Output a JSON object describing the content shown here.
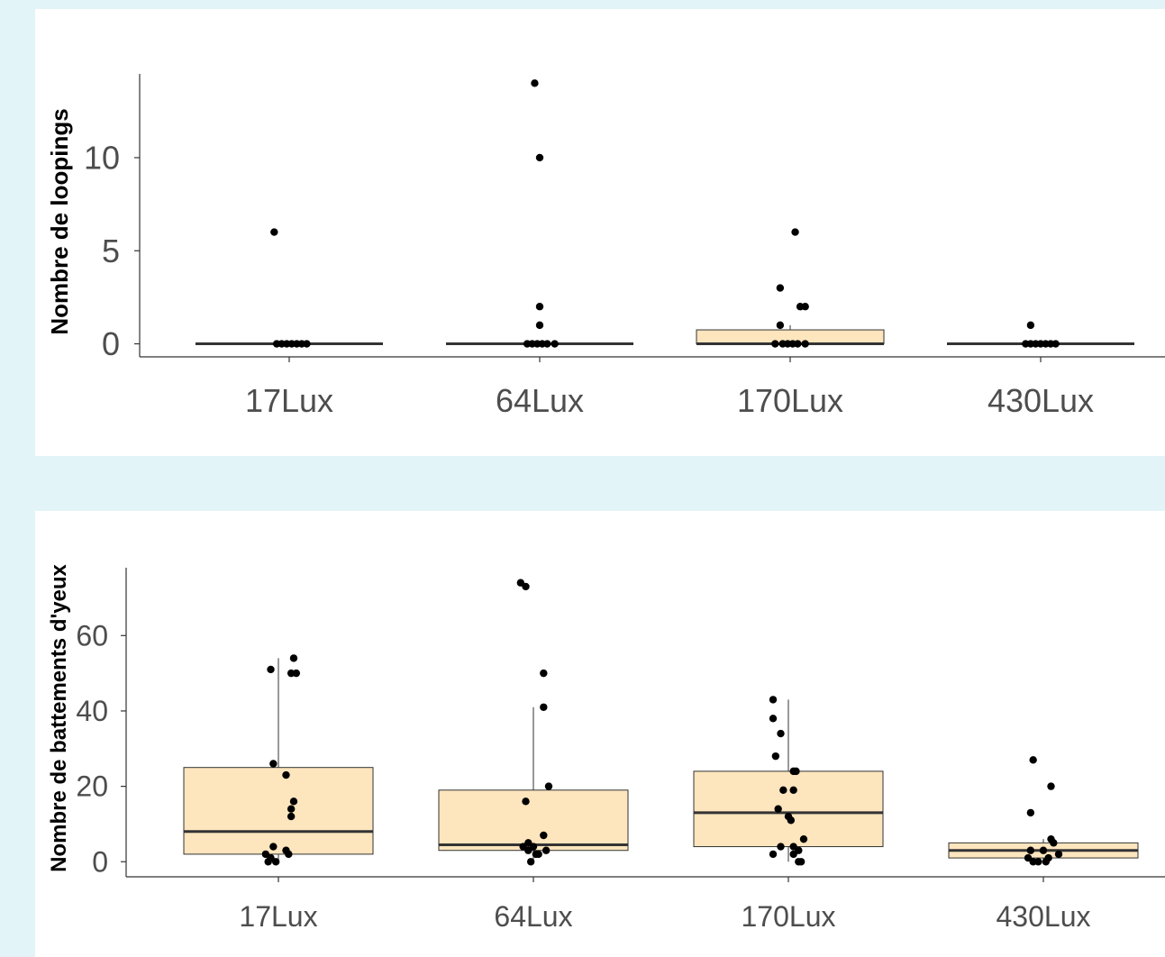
{
  "colors": {
    "box_fill": "#fde5bd",
    "box_stroke": "#333333",
    "point": "#000000",
    "axis": "#333333"
  },
  "chart_data": [
    {
      "type": "box",
      "ylabel": "Nombre de loopings",
      "categories": [
        "17Lux",
        "64Lux",
        "170Lux",
        "430Lux"
      ],
      "y_ticks": [
        0,
        5,
        10
      ],
      "ylim": [
        -0.7,
        14.5
      ],
      "boxes": [
        {
          "q1": 0,
          "median": 0,
          "q3": 0,
          "whisker_low": 0,
          "whisker_high": 0
        },
        {
          "q1": 0,
          "median": 0,
          "q3": 0,
          "whisker_low": 0,
          "whisker_high": 0
        },
        {
          "q1": 0,
          "median": 0,
          "q3": 0.75,
          "whisker_low": 0,
          "whisker_high": 1
        },
        {
          "q1": 0,
          "median": 0,
          "q3": 0,
          "whisker_low": 0,
          "whisker_high": 0
        }
      ],
      "points": [
        [
          [
            -0.06,
            6
          ],
          [
            -0.05,
            0
          ],
          [
            -0.03,
            0
          ],
          [
            -0.01,
            0
          ],
          [
            0.01,
            0
          ],
          [
            0.03,
            0
          ],
          [
            0.05,
            0
          ],
          [
            0.07,
            0
          ]
        ],
        [
          [
            -0.02,
            14
          ],
          [
            0,
            10
          ],
          [
            0,
            2
          ],
          [
            0,
            1
          ],
          [
            -0.05,
            0
          ],
          [
            -0.03,
            0
          ],
          [
            -0.01,
            0
          ],
          [
            0.01,
            0
          ],
          [
            0.03,
            0
          ],
          [
            0.06,
            0
          ]
        ],
        [
          [
            0.02,
            6
          ],
          [
            -0.04,
            3
          ],
          [
            0.04,
            2
          ],
          [
            0.06,
            2
          ],
          [
            -0.04,
            1
          ],
          [
            -0.06,
            0
          ],
          [
            -0.03,
            0
          ],
          [
            -0.01,
            0
          ],
          [
            0.01,
            0
          ],
          [
            0.03,
            0
          ],
          [
            0.06,
            0
          ]
        ],
        [
          [
            -0.04,
            1
          ],
          [
            -0.06,
            0
          ],
          [
            -0.04,
            0
          ],
          [
            -0.02,
            0
          ],
          [
            0,
            0
          ],
          [
            0.02,
            0
          ],
          [
            0.04,
            0
          ],
          [
            0.06,
            0
          ]
        ]
      ]
    },
    {
      "type": "box",
      "ylabel": "Nombre de battements d'yeux",
      "categories": [
        "17Lux",
        "64Lux",
        "170Lux",
        "430Lux"
      ],
      "y_ticks": [
        0,
        20,
        40,
        60
      ],
      "ylim": [
        -4,
        78
      ],
      "boxes": [
        {
          "q1": 2,
          "median": 8,
          "q3": 25,
          "whisker_low": 0,
          "whisker_high": 54
        },
        {
          "q1": 3,
          "median": 4.5,
          "q3": 19,
          "whisker_low": 0,
          "whisker_high": 41
        },
        {
          "q1": 4,
          "median": 13,
          "q3": 24,
          "whisker_low": 0,
          "whisker_high": 43
        },
        {
          "q1": 1,
          "median": 3,
          "q3": 5,
          "whisker_low": 0,
          "whisker_high": 6
        }
      ],
      "points": [
        [
          [
            -0.03,
            51
          ],
          [
            0.05,
            50
          ],
          [
            0.07,
            50
          ],
          [
            0.06,
            54
          ],
          [
            -0.02,
            26
          ],
          [
            0.03,
            23
          ],
          [
            0.06,
            16
          ],
          [
            0.05,
            14
          ],
          [
            0.05,
            12
          ],
          [
            -0.02,
            4
          ],
          [
            0.03,
            3
          ],
          [
            0.04,
            2
          ],
          [
            -0.05,
            2
          ],
          [
            -0.03,
            1
          ],
          [
            -0.04,
            0
          ],
          [
            -0.01,
            0
          ]
        ],
        [
          [
            -0.05,
            74
          ],
          [
            -0.03,
            73
          ],
          [
            0.04,
            50
          ],
          [
            0.04,
            41
          ],
          [
            0.06,
            20
          ],
          [
            -0.03,
            16
          ],
          [
            0.04,
            7
          ],
          [
            -0.02,
            5
          ],
          [
            0,
            4
          ],
          [
            -0.04,
            4
          ],
          [
            0.05,
            3
          ],
          [
            0.02,
            2
          ],
          [
            -0.02,
            3
          ],
          [
            0.01,
            2
          ],
          [
            -0.01,
            0
          ]
        ],
        [
          [
            -0.06,
            43
          ],
          [
            -0.06,
            38
          ],
          [
            -0.03,
            34
          ],
          [
            -0.05,
            28
          ],
          [
            0.02,
            24
          ],
          [
            0.03,
            24
          ],
          [
            -0.02,
            19
          ],
          [
            0.02,
            19
          ],
          [
            -0.04,
            14
          ],
          [
            0,
            12
          ],
          [
            0.01,
            11
          ],
          [
            0.06,
            6
          ],
          [
            -0.03,
            4
          ],
          [
            0.02,
            4
          ],
          [
            0.04,
            3
          ],
          [
            0.02,
            2
          ],
          [
            -0.06,
            2
          ],
          [
            0.04,
            0
          ],
          [
            0.05,
            0
          ]
        ],
        [
          [
            -0.04,
            27
          ],
          [
            0.03,
            20
          ],
          [
            -0.05,
            13
          ],
          [
            0.03,
            6
          ],
          [
            0.04,
            5
          ],
          [
            -0.05,
            3
          ],
          [
            0,
            3
          ],
          [
            0.06,
            2
          ],
          [
            -0.06,
            1
          ],
          [
            0.02,
            1
          ],
          [
            -0.04,
            0
          ],
          [
            -0.02,
            0
          ],
          [
            0.01,
            0
          ]
        ]
      ]
    }
  ]
}
